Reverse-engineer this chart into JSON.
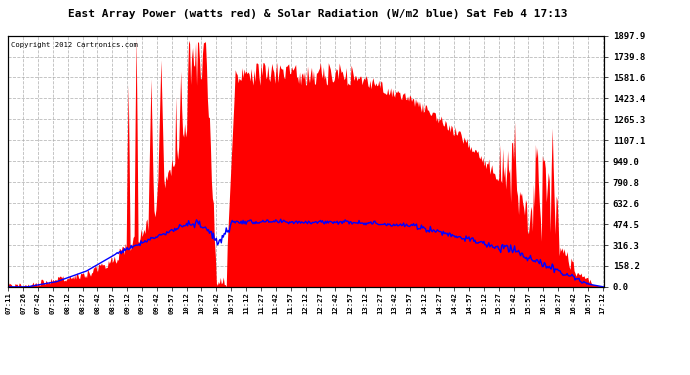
{
  "title": "East Array Power (watts red) & Solar Radiation (W/m2 blue) Sat Feb 4 17:13",
  "copyright": "Copyright 2012 Cartronics.com",
  "bg_color": "#ffffff",
  "plot_bg_color": "#ffffff",
  "red_color": "#ff0000",
  "blue_color": "#0000ff",
  "text_color": "#000000",
  "grid_color": "#aaaaaa",
  "ylabel_right_color": "#000000",
  "border_color": "#000000",
  "yticks": [
    0.0,
    158.2,
    316.3,
    474.5,
    632.6,
    790.8,
    949.0,
    1107.1,
    1265.3,
    1423.4,
    1581.6,
    1739.8,
    1897.9
  ],
  "ymax": 1897.9,
  "xtick_labels": [
    "07:11",
    "07:26",
    "07:42",
    "07:57",
    "08:12",
    "08:27",
    "08:42",
    "08:57",
    "09:12",
    "09:27",
    "09:42",
    "09:57",
    "10:12",
    "10:27",
    "10:42",
    "10:57",
    "11:12",
    "11:27",
    "11:42",
    "11:57",
    "12:12",
    "12:27",
    "12:42",
    "12:57",
    "13:12",
    "13:27",
    "13:42",
    "13:57",
    "14:12",
    "14:27",
    "14:42",
    "14:57",
    "15:12",
    "15:27",
    "15:42",
    "15:57",
    "16:12",
    "16:27",
    "16:42",
    "16:57",
    "17:12"
  ]
}
